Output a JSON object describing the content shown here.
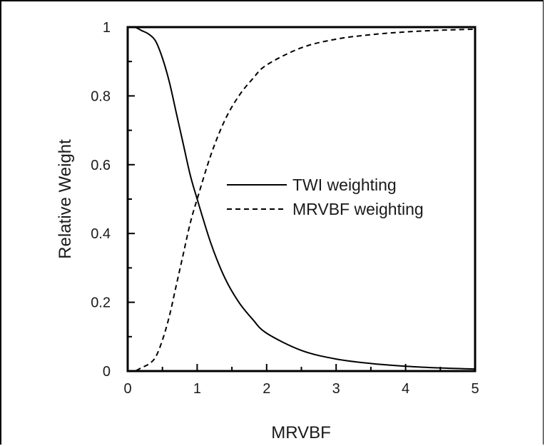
{
  "chart_data": {
    "type": "line",
    "xlabel": "MRVBF",
    "ylabel": "Relative Weight",
    "xlim": [
      0,
      5
    ],
    "ylim": [
      0,
      1
    ],
    "x_ticks": [
      "0",
      "1",
      "2",
      "3",
      "4",
      "5"
    ],
    "y_ticks": [
      "0",
      "0.2",
      "0.4",
      "0.6",
      "0.8",
      "1"
    ],
    "legend_position": "center-right",
    "grid": false,
    "series": [
      {
        "name": "TWI weighting",
        "style": "solid",
        "x": [
          0,
          0.1,
          0.2,
          0.3,
          0.4,
          0.5,
          0.6,
          0.7,
          0.8,
          0.9,
          1.0,
          1.2,
          1.4,
          1.6,
          1.8,
          2.0,
          2.5,
          3.0,
          3.5,
          4.0,
          4.5,
          5.0
        ],
        "values": [
          1.0,
          1.0,
          0.99,
          0.98,
          0.96,
          0.91,
          0.84,
          0.75,
          0.66,
          0.57,
          0.5,
          0.37,
          0.27,
          0.2,
          0.15,
          0.11,
          0.06,
          0.035,
          0.022,
          0.014,
          0.009,
          0.006
        ]
      },
      {
        "name": "MRVBF weighting",
        "style": "dashed",
        "x": [
          0,
          0.1,
          0.2,
          0.3,
          0.4,
          0.5,
          0.6,
          0.7,
          0.8,
          0.9,
          1.0,
          1.2,
          1.4,
          1.6,
          1.8,
          2.0,
          2.5,
          3.0,
          3.5,
          4.0,
          4.5,
          5.0
        ],
        "values": [
          0.0,
          0.0,
          0.01,
          0.02,
          0.04,
          0.09,
          0.16,
          0.25,
          0.34,
          0.43,
          0.5,
          0.63,
          0.73,
          0.8,
          0.85,
          0.89,
          0.94,
          0.965,
          0.978,
          0.986,
          0.991,
          0.994
        ]
      }
    ]
  }
}
